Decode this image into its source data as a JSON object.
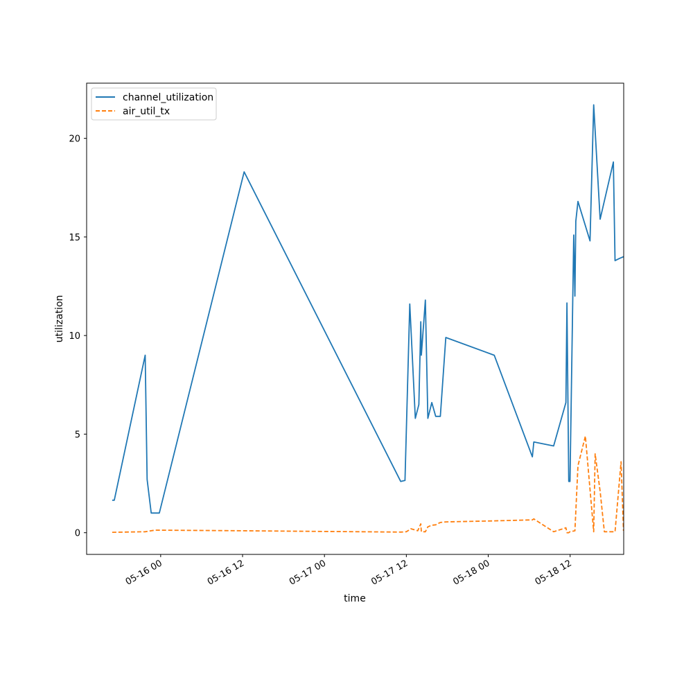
{
  "chart_data": {
    "type": "line",
    "title": "",
    "xlabel": "time",
    "ylabel": "utilization",
    "x_unit": "datetime",
    "xlim": [
      "2024-05-15 13:09",
      "2024-05-18 19:51"
    ],
    "ylim": [
      -1.1,
      22.8
    ],
    "xticks": [
      {
        "value": "2024-05-16 00:00",
        "label": "05-16 00"
      },
      {
        "value": "2024-05-16 12:00",
        "label": "05-16 12"
      },
      {
        "value": "2024-05-17 00:00",
        "label": "05-17 00"
      },
      {
        "value": "2024-05-17 12:00",
        "label": "05-17 12"
      },
      {
        "value": "2024-05-18 00:00",
        "label": "05-18 00"
      },
      {
        "value": "2024-05-18 12:00",
        "label": "05-18 12"
      }
    ],
    "yticks": [
      0,
      5,
      10,
      15,
      20
    ],
    "grid": false,
    "legend": "upper-left",
    "series": [
      {
        "name": "channel_utilization",
        "color": "#1f77b4",
        "dash": "solid",
        "x": [
          "2024-05-15 16:54",
          "2024-05-15 17:12",
          "2024-05-15 21:44",
          "2024-05-15 22:01",
          "2024-05-15 22:37",
          "2024-05-15 23:48",
          "2024-05-16 12:14",
          "2024-05-17 11:10",
          "2024-05-17 11:48",
          "2024-05-17 12:30",
          "2024-05-17 13:19",
          "2024-05-17 13:50",
          "2024-05-17 14:07",
          "2024-05-17 14:12",
          "2024-05-17 14:47",
          "2024-05-17 15:09",
          "2024-05-17 15:44",
          "2024-05-17 16:18",
          "2024-05-17 16:59",
          "2024-05-17 17:47",
          "2024-05-18 00:53",
          "2024-05-18 06:28",
          "2024-05-18 06:41",
          "2024-05-18 09:35",
          "2024-05-18 11:23",
          "2024-05-18 11:32",
          "2024-05-18 11:48",
          "2024-05-18 11:59",
          "2024-05-18 12:32",
          "2024-05-18 12:42",
          "2024-05-18 12:50",
          "2024-05-18 13:09",
          "2024-05-18 14:55",
          "2024-05-18 15:27",
          "2024-05-18 16:24",
          "2024-05-18 18:20",
          "2024-05-18 18:35",
          "2024-05-18 19:10",
          "2024-05-18 19:49"
        ],
        "values": [
          1.65,
          1.65,
          9.0,
          2.7,
          1.0,
          1.0,
          18.3,
          2.6,
          2.65,
          11.6,
          5.8,
          6.5,
          10.7,
          9.0,
          11.8,
          5.8,
          6.6,
          5.9,
          5.9,
          9.9,
          9.0,
          3.85,
          4.6,
          4.4,
          6.6,
          11.65,
          2.6,
          2.6,
          15.1,
          12.0,
          15.8,
          16.8,
          14.8,
          21.7,
          15.9,
          18.8,
          13.8,
          13.9,
          14.0
        ]
      },
      {
        "name": "air_util_tx",
        "color": "#ff7f0e",
        "dash": "dashed",
        "x": [
          "2024-05-15 16:54",
          "2024-05-15 21:44",
          "2024-05-15 23:10",
          "2024-05-16 12:14",
          "2024-05-17 11:10",
          "2024-05-17 12:00",
          "2024-05-17 12:40",
          "2024-05-17 13:40",
          "2024-05-17 14:07",
          "2024-05-17 14:12",
          "2024-05-17 14:47",
          "2024-05-17 15:09",
          "2024-05-17 15:44",
          "2024-05-17 16:18",
          "2024-05-17 16:59",
          "2024-05-17 17:47",
          "2024-05-18 00:53",
          "2024-05-18 06:28",
          "2024-05-18 06:41",
          "2024-05-18 09:35",
          "2024-05-18 11:23",
          "2024-05-18 11:32",
          "2024-05-18 11:48",
          "2024-05-18 11:59",
          "2024-05-18 12:42",
          "2024-05-18 13:09",
          "2024-05-18 14:14",
          "2024-05-18 15:27",
          "2024-05-18 15:40",
          "2024-05-18 16:24",
          "2024-05-18 17:01",
          "2024-05-18 18:00",
          "2024-05-18 18:35",
          "2024-05-18 19:28",
          "2024-05-18 19:49"
        ],
        "values": [
          0.02,
          0.05,
          0.13,
          0.1,
          0.03,
          0.05,
          0.2,
          0.1,
          0.45,
          0.05,
          0.05,
          0.3,
          0.38,
          0.4,
          0.52,
          0.55,
          0.6,
          0.65,
          0.7,
          0.05,
          0.25,
          0.0,
          0.0,
          0.05,
          0.1,
          3.4,
          4.9,
          0.05,
          4.0,
          2.1,
          0.05,
          0.05,
          0.05,
          3.6,
          0.1
        ]
      }
    ]
  }
}
